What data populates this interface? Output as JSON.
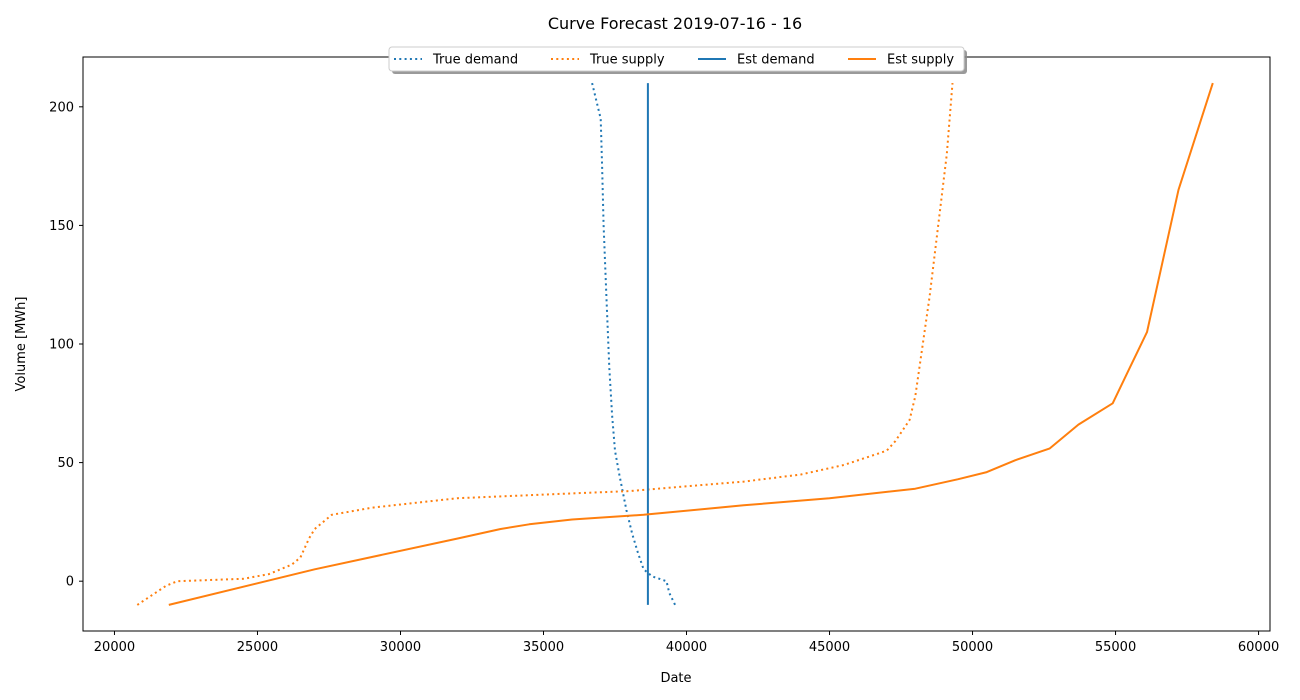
{
  "chart_data": {
    "type": "line",
    "title": "Curve Forecast 2019-07-16 - 16",
    "xlabel": "Date",
    "ylabel": "Volume [MWh]",
    "xlim": [
      18900,
      60400
    ],
    "ylim": [
      -21,
      221
    ],
    "xticks": [
      20000,
      25000,
      30000,
      35000,
      40000,
      45000,
      50000,
      55000,
      60000
    ],
    "yticks": [
      0,
      50,
      100,
      150,
      200
    ],
    "grid": false,
    "legend": {
      "placement": "top-center"
    },
    "series": [
      {
        "name": "True demand",
        "color": "#1f77b4",
        "style": "dotted",
        "points": [
          [
            36700,
            210
          ],
          [
            37000,
            195
          ],
          [
            37050,
            175
          ],
          [
            37100,
            150
          ],
          [
            37200,
            120
          ],
          [
            37300,
            90
          ],
          [
            37400,
            70
          ],
          [
            37500,
            55
          ],
          [
            37650,
            45
          ],
          [
            37900,
            30
          ],
          [
            38100,
            20
          ],
          [
            38300,
            12
          ],
          [
            38500,
            5
          ],
          [
            38800,
            2
          ],
          [
            39300,
            0
          ],
          [
            39400,
            -5
          ],
          [
            39600,
            -10
          ]
        ]
      },
      {
        "name": "True supply",
        "color": "#ff7f0e",
        "style": "dotted",
        "points": [
          [
            20800,
            -10
          ],
          [
            21300,
            -6
          ],
          [
            21800,
            -2
          ],
          [
            22200,
            0
          ],
          [
            24500,
            1
          ],
          [
            25400,
            3
          ],
          [
            26200,
            7
          ],
          [
            26500,
            10
          ],
          [
            26800,
            18
          ],
          [
            27000,
            22
          ],
          [
            27600,
            28
          ],
          [
            29000,
            31
          ],
          [
            30500,
            33
          ],
          [
            32000,
            35
          ],
          [
            34000,
            36
          ],
          [
            36000,
            37
          ],
          [
            38000,
            38
          ],
          [
            40000,
            40
          ],
          [
            42000,
            42
          ],
          [
            44000,
            45
          ],
          [
            45500,
            49
          ],
          [
            46500,
            53
          ],
          [
            47000,
            55
          ],
          [
            47300,
            59
          ],
          [
            47800,
            68
          ],
          [
            48000,
            78
          ],
          [
            48200,
            95
          ],
          [
            48500,
            120
          ],
          [
            48800,
            150
          ],
          [
            49100,
            180
          ],
          [
            49300,
            210
          ]
        ]
      },
      {
        "name": "Est demand",
        "color": "#1f77b4",
        "style": "solid",
        "points": [
          [
            38650,
            -10
          ],
          [
            38650,
            210
          ]
        ]
      },
      {
        "name": "Est supply",
        "color": "#ff7f0e",
        "style": "solid",
        "points": [
          [
            21900,
            -10
          ],
          [
            27000,
            5
          ],
          [
            32000,
            18
          ],
          [
            33500,
            22
          ],
          [
            34500,
            24
          ],
          [
            36000,
            26
          ],
          [
            38500,
            28
          ],
          [
            42000,
            32
          ],
          [
            45000,
            35
          ],
          [
            48000,
            39
          ],
          [
            49500,
            43
          ],
          [
            50500,
            46
          ],
          [
            51500,
            51
          ],
          [
            52700,
            56
          ],
          [
            53700,
            66
          ],
          [
            54900,
            75
          ],
          [
            55500,
            90
          ],
          [
            56100,
            105
          ],
          [
            57200,
            165
          ],
          [
            58400,
            210
          ]
        ]
      }
    ]
  }
}
